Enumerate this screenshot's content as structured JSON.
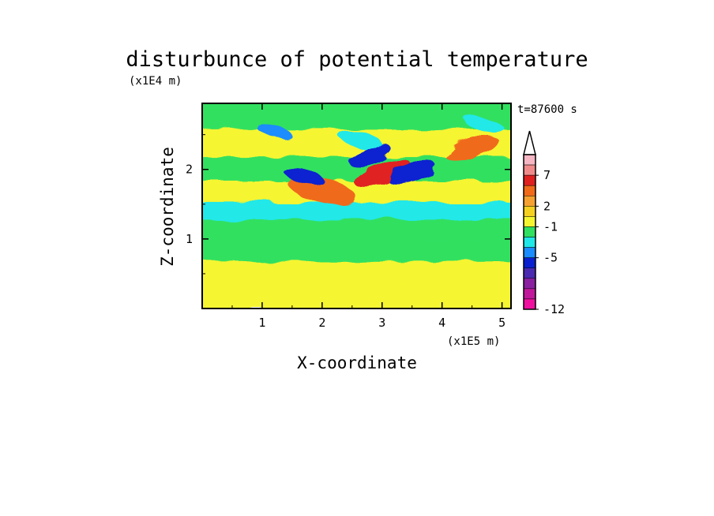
{
  "chart_data": {
    "type": "heatmap",
    "title": "disturbunce of potential temperature",
    "xlabel": "X-coordinate",
    "ylabel": "Z-coordinate",
    "x_unit": "(x1E5 m)",
    "y_unit": "(x1E4 m)",
    "time_label": "t=87600 s",
    "xlim": [
      0,
      5.15
    ],
    "ylim": [
      0,
      2.95
    ],
    "x_ticks": [
      "1",
      "2",
      "3",
      "4",
      "5"
    ],
    "y_ticks": [
      "1",
      "2"
    ],
    "colorbar": {
      "tick_labels": [
        "7",
        "2",
        "-1",
        "-5",
        "-12"
      ],
      "extend": "max",
      "colors": [
        "#f5b5c3",
        "#f08a8a",
        "#e02020",
        "#f06a1a",
        "#f5a030",
        "#f5d020",
        "#f5f530",
        "#30e060",
        "#20e8e8",
        "#1a8cff",
        "#0a20d0",
        "#4a2ab0",
        "#8a20a0",
        "#c0189a",
        "#f010a0"
      ]
    },
    "field_features": [
      {
        "x": 2.0,
        "z": 1.7,
        "value": 4
      },
      {
        "x": 3.0,
        "z": 1.95,
        "value": 6
      },
      {
        "x": 2.65,
        "z": 2.42,
        "value": -3
      },
      {
        "x": 3.5,
        "z": 1.95,
        "value": -5
      },
      {
        "x": 1.7,
        "z": 1.9,
        "value": -5
      },
      {
        "x": 2.8,
        "z": 2.2,
        "value": -5
      },
      {
        "x": 1.2,
        "z": 2.55,
        "value": -4
      },
      {
        "x": 4.5,
        "z": 2.3,
        "value": 4
      },
      {
        "x": 4.7,
        "z": 2.65,
        "value": -3
      }
    ]
  }
}
